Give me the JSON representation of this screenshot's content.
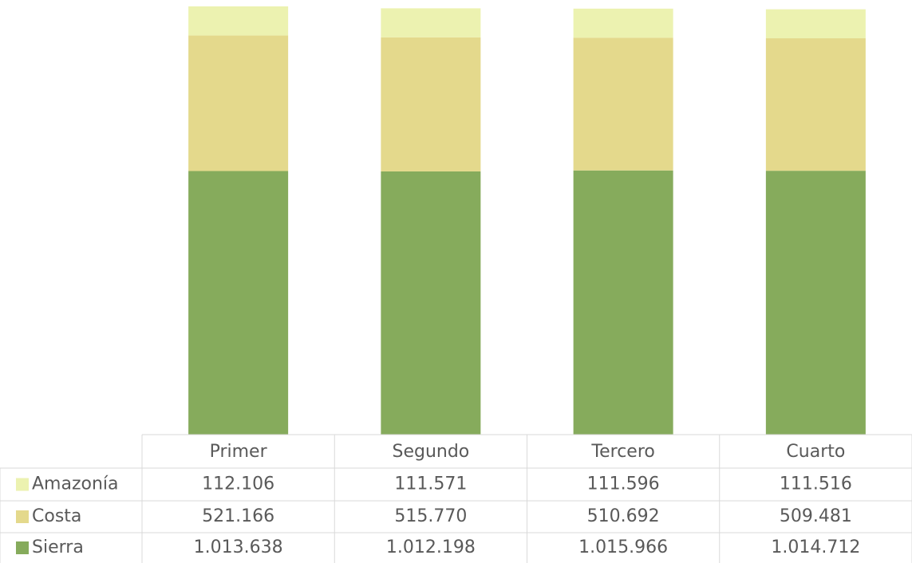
{
  "chart_data": {
    "type": "stacked_bar",
    "categories": [
      "Primer",
      "Segundo",
      "Tercero",
      "Cuarto"
    ],
    "series": [
      {
        "name": "Amazonía",
        "color": "#ecf2b0",
        "values": [
          112106,
          111571,
          111596,
          111516
        ],
        "value_labels": [
          "112.106",
          "111.571",
          "111.596",
          "111.516"
        ]
      },
      {
        "name": "Costa",
        "color": "#e4d98c",
        "values": [
          521166,
          515770,
          510692,
          509481
        ],
        "value_labels": [
          "521.166",
          "515.770",
          "510.692",
          "509.481"
        ]
      },
      {
        "name": "Sierra",
        "color": "#86ab5c",
        "values": [
          1013638,
          1012198,
          1015966,
          1014712
        ],
        "value_labels": [
          "1.013.638",
          "1.012.198",
          "1.015.966",
          "1.014.712"
        ]
      }
    ]
  }
}
